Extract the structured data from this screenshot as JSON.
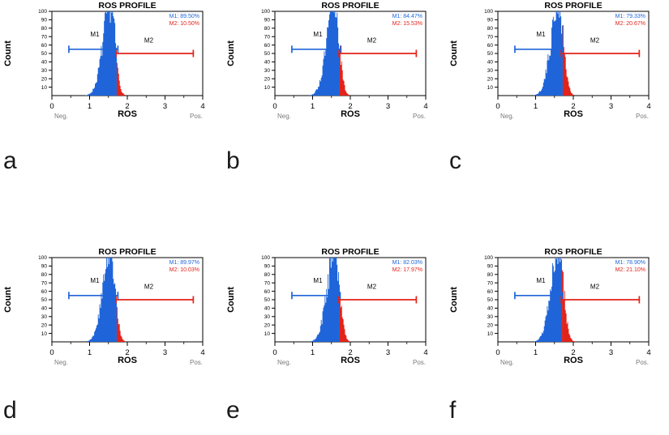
{
  "colors": {
    "blue": "#1f65d9",
    "red": "#e2231a",
    "axis": "#000000",
    "muted_gray": "#7a7a7a"
  },
  "chart_data": [
    {
      "type": "histogram",
      "panel": "a",
      "title": "ROS PROFILE",
      "xlabel": "ROS",
      "ylabel": "Count",
      "xlim": [
        0,
        4
      ],
      "ylim": [
        0,
        100
      ],
      "xticks": [
        0,
        1,
        2,
        3,
        4
      ],
      "yticks": [
        10,
        20,
        30,
        40,
        50,
        60,
        70,
        80,
        90,
        100
      ],
      "x_axis_qualifiers": {
        "left": "Neg.",
        "right": "Pos."
      },
      "annotations": [
        "M1: 89.50%",
        "M2: 10.50%"
      ],
      "markers": [
        {
          "name": "M1",
          "pct": 89.5,
          "range": [
            0.45,
            1.75
          ],
          "level": 55,
          "label_x": 1.02,
          "label_level": 70,
          "color": "blue"
        },
        {
          "name": "M2",
          "pct": 10.5,
          "range": [
            1.7,
            3.75
          ],
          "level": 50,
          "label_x": 2.45,
          "label_level": 63,
          "color": "red"
        }
      ],
      "hist": {
        "center": 1.56,
        "sigma_left": 0.2,
        "sigma_right": 0.12,
        "red_start": 1.72,
        "amplitude": 115,
        "bin_width": 0.02,
        "seed": 7
      }
    },
    {
      "type": "histogram",
      "panel": "b",
      "title": "ROS PROFILE",
      "xlabel": "ROS",
      "ylabel": "Count",
      "xlim": [
        0,
        4
      ],
      "ylim": [
        0,
        100
      ],
      "xticks": [
        0,
        1,
        2,
        3,
        4
      ],
      "yticks": [
        10,
        20,
        30,
        40,
        50,
        60,
        70,
        80,
        90,
        100
      ],
      "x_axis_qualifiers": {
        "left": "Neg.",
        "right": "Pos."
      },
      "annotations": [
        "M1: 84.47%",
        "M2: 15.53%"
      ],
      "markers": [
        {
          "name": "M1",
          "pct": 84.47,
          "range": [
            0.45,
            1.75
          ],
          "level": 55,
          "label_x": 1.02,
          "label_level": 70,
          "color": "blue"
        },
        {
          "name": "M2",
          "pct": 15.53,
          "range": [
            1.7,
            3.75
          ],
          "level": 50,
          "label_x": 2.45,
          "label_level": 63,
          "color": "red"
        }
      ],
      "hist": {
        "center": 1.58,
        "sigma_left": 0.2,
        "sigma_right": 0.125,
        "red_start": 1.72,
        "amplitude": 115,
        "bin_width": 0.02,
        "seed": 13
      }
    },
    {
      "type": "histogram",
      "panel": "c",
      "title": "ROS PROFILE",
      "xlabel": "ROS",
      "ylabel": "Count",
      "xlim": [
        0,
        4
      ],
      "ylim": [
        0,
        100
      ],
      "xticks": [
        0,
        1,
        2,
        3,
        4
      ],
      "yticks": [
        10,
        20,
        30,
        40,
        50,
        60,
        70,
        80,
        90,
        100
      ],
      "x_axis_qualifiers": {
        "left": "Neg.",
        "right": "Pos."
      },
      "annotations": [
        "M1: 79.33%",
        "M2: 20.67%"
      ],
      "markers": [
        {
          "name": "M1",
          "pct": 79.33,
          "range": [
            0.45,
            1.72
          ],
          "level": 55,
          "label_x": 1.02,
          "label_level": 70,
          "color": "blue"
        },
        {
          "name": "M2",
          "pct": 20.67,
          "range": [
            1.68,
            3.75
          ],
          "level": 50,
          "label_x": 2.45,
          "label_level": 63,
          "color": "red"
        }
      ],
      "hist": {
        "center": 1.61,
        "sigma_left": 0.2,
        "sigma_right": 0.13,
        "red_start": 1.72,
        "amplitude": 115,
        "bin_width": 0.02,
        "seed": 21
      }
    },
    {
      "type": "histogram",
      "panel": "d",
      "title": "ROS PROFILE",
      "xlabel": "ROS",
      "ylabel": "Count",
      "xlim": [
        0,
        4
      ],
      "ylim": [
        0,
        100
      ],
      "xticks": [
        0,
        1,
        2,
        3,
        4
      ],
      "yticks": [
        10,
        20,
        30,
        40,
        50,
        60,
        70,
        80,
        90,
        100
      ],
      "x_axis_qualifiers": {
        "left": "Neg.",
        "right": "Pos."
      },
      "annotations": [
        "M1: 89.97%",
        "M2: 10.03%"
      ],
      "markers": [
        {
          "name": "M1",
          "pct": 89.97,
          "range": [
            0.45,
            1.75
          ],
          "level": 55,
          "label_x": 1.02,
          "label_level": 70,
          "color": "blue"
        },
        {
          "name": "M2",
          "pct": 10.03,
          "range": [
            1.7,
            3.75
          ],
          "level": 50,
          "label_x": 2.45,
          "label_level": 63,
          "color": "red"
        }
      ],
      "hist": {
        "center": 1.56,
        "sigma_left": 0.2,
        "sigma_right": 0.12,
        "red_start": 1.72,
        "amplitude": 115,
        "bin_width": 0.02,
        "seed": 29
      }
    },
    {
      "type": "histogram",
      "panel": "e",
      "title": "ROS PROFILE",
      "xlabel": "ROS",
      "ylabel": "Count",
      "xlim": [
        0,
        4
      ],
      "ylim": [
        0,
        100
      ],
      "xticks": [
        0,
        1,
        2,
        3,
        4
      ],
      "yticks": [
        10,
        20,
        30,
        40,
        50,
        60,
        70,
        80,
        90,
        100
      ],
      "x_axis_qualifiers": {
        "left": "Neg.",
        "right": "Pos."
      },
      "annotations": [
        "M1: 82.03%",
        "M2: 17.97%"
      ],
      "markers": [
        {
          "name": "M1",
          "pct": 82.03,
          "range": [
            0.45,
            1.73
          ],
          "level": 55,
          "label_x": 1.02,
          "label_level": 70,
          "color": "blue"
        },
        {
          "name": "M2",
          "pct": 17.97,
          "range": [
            1.69,
            3.75
          ],
          "level": 50,
          "label_x": 2.45,
          "label_level": 63,
          "color": "red"
        }
      ],
      "hist": {
        "center": 1.59,
        "sigma_left": 0.2,
        "sigma_right": 0.125,
        "red_start": 1.72,
        "amplitude": 115,
        "bin_width": 0.02,
        "seed": 35
      }
    },
    {
      "type": "histogram",
      "panel": "f",
      "title": "ROS PROFILE",
      "xlabel": "ROS",
      "ylabel": "Count",
      "xlim": [
        0,
        4
      ],
      "ylim": [
        0,
        100
      ],
      "xticks": [
        0,
        1,
        2,
        3,
        4
      ],
      "yticks": [
        10,
        20,
        30,
        40,
        50,
        60,
        70,
        80,
        90,
        100
      ],
      "x_axis_qualifiers": {
        "left": "Neg.",
        "right": "Pos."
      },
      "annotations": [
        "M1: 78.90%",
        "M2: 21.10%"
      ],
      "markers": [
        {
          "name": "M1",
          "pct": 78.9,
          "range": [
            0.45,
            1.72
          ],
          "level": 55,
          "label_x": 1.02,
          "label_level": 70,
          "color": "blue"
        },
        {
          "name": "M2",
          "pct": 21.1,
          "range": [
            1.68,
            3.75
          ],
          "level": 50,
          "label_x": 2.45,
          "label_level": 63,
          "color": "red"
        }
      ],
      "hist": {
        "center": 1.61,
        "sigma_left": 0.2,
        "sigma_right": 0.13,
        "red_start": 1.71,
        "amplitude": 115,
        "bin_width": 0.02,
        "seed": 41
      }
    }
  ]
}
